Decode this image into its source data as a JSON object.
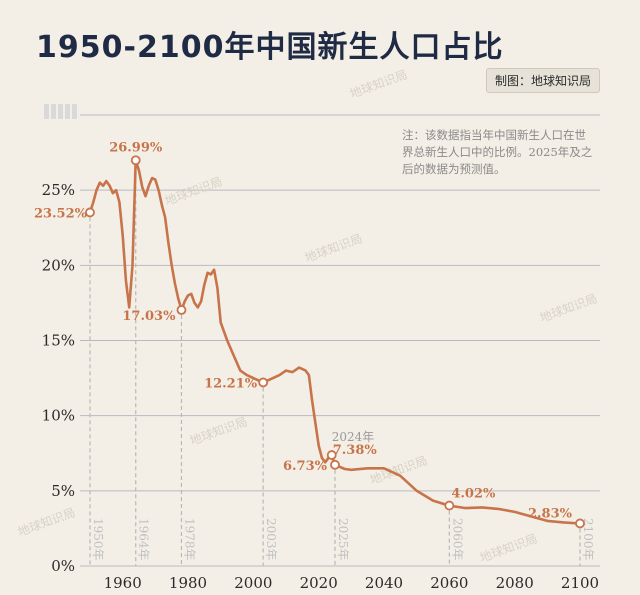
{
  "title": "1950-2100年中国新生人口占比",
  "credit": "制图：地球知识局",
  "note": "注：该数据指当年中国新生人口在世界总新生人口中的比例。2025年及之后的数据为预测值。",
  "watermark": "地球知识局",
  "colors": {
    "line": "#c8744a",
    "grid": "#b9b9c4",
    "marker_line": "#b8b8b8",
    "title": "#1f2a44",
    "background": "#f3efe6"
  },
  "chart_data": {
    "type": "line",
    "title": "1950-2100年中国新生人口占比",
    "xlabel": "",
    "ylabel": "",
    "xlim": [
      1950,
      2100
    ],
    "ylim": [
      0,
      30
    ],
    "y_ticks": [
      0,
      5,
      10,
      15,
      20,
      25
    ],
    "y_tick_labels": [
      "0%",
      "5%",
      "10%",
      "15%",
      "20%",
      "25%"
    ],
    "x_ticks": [
      1960,
      1980,
      2000,
      2020,
      2040,
      2060,
      2080,
      2100
    ],
    "x_tick_labels": [
      "1960",
      "1980",
      "2000",
      "2020",
      "2040",
      "2060",
      "2080",
      "2100"
    ],
    "grid": true,
    "legend": "none",
    "series": [
      {
        "x": [
          1950,
          1951,
          1952,
          1953,
          1954,
          1955,
          1956,
          1957,
          1958,
          1959,
          1960,
          1961,
          1962,
          1963,
          1964,
          1965,
          1966,
          1967,
          1968,
          1969,
          1970,
          1971,
          1972,
          1973,
          1974,
          1975,
          1976,
          1977,
          1978,
          1979,
          1980,
          1981,
          1982,
          1983,
          1984,
          1985,
          1986,
          1987,
          1988,
          1989,
          1990,
          1992,
          1994,
          1996,
          1998,
          2000,
          2002,
          2003,
          2005,
          2008,
          2010,
          2012,
          2014,
          2016,
          2017,
          2018,
          2019,
          2020,
          2021,
          2022,
          2023,
          2024,
          2025,
          2028,
          2030,
          2035,
          2040,
          2045,
          2050,
          2055,
          2060,
          2065,
          2070,
          2075,
          2080,
          2085,
          2090,
          2095,
          2100
        ],
        "values": [
          23.52,
          24.2,
          25.0,
          25.5,
          25.3,
          25.6,
          25.3,
          24.8,
          25.0,
          24.2,
          22.0,
          19.0,
          17.2,
          20.0,
          26.99,
          26.3,
          25.2,
          24.6,
          25.3,
          25.8,
          25.7,
          25.0,
          24.0,
          23.2,
          21.5,
          20.0,
          18.8,
          17.8,
          17.03,
          17.6,
          18.0,
          18.1,
          17.5,
          17.2,
          17.6,
          18.7,
          19.5,
          19.4,
          19.7,
          18.5,
          16.2,
          15.0,
          14.0,
          13.0,
          12.7,
          12.5,
          12.3,
          12.21,
          12.4,
          12.7,
          13.0,
          12.9,
          13.2,
          13.0,
          12.7,
          11.0,
          9.5,
          8.0,
          7.2,
          6.9,
          7.2,
          7.38,
          6.73,
          6.45,
          6.4,
          6.5,
          6.5,
          6.0,
          5.0,
          4.35,
          4.02,
          3.85,
          3.9,
          3.8,
          3.6,
          3.3,
          3.0,
          2.9,
          2.83
        ]
      }
    ],
    "labeled_points": [
      {
        "x": 1950,
        "y": 23.52,
        "label": "23.52%",
        "marker": "1950年"
      },
      {
        "x": 1964,
        "y": 26.99,
        "label": "26.99%",
        "marker": "1964年"
      },
      {
        "x": 1978,
        "y": 17.03,
        "label": "17.03%",
        "marker": "1978年"
      },
      {
        "x": 2003,
        "y": 12.21,
        "label": "12.21%",
        "marker": "2003年"
      },
      {
        "x": 2024,
        "y": 7.38,
        "label": "7.38%",
        "marker": "2024年"
      },
      {
        "x": 2025,
        "y": 6.73,
        "label": "6.73%",
        "marker": "2025年"
      },
      {
        "x": 2060,
        "y": 4.02,
        "label": "4.02%",
        "marker": "2060年"
      },
      {
        "x": 2100,
        "y": 2.83,
        "label": "2.83%",
        "marker": "2100年"
      }
    ]
  }
}
